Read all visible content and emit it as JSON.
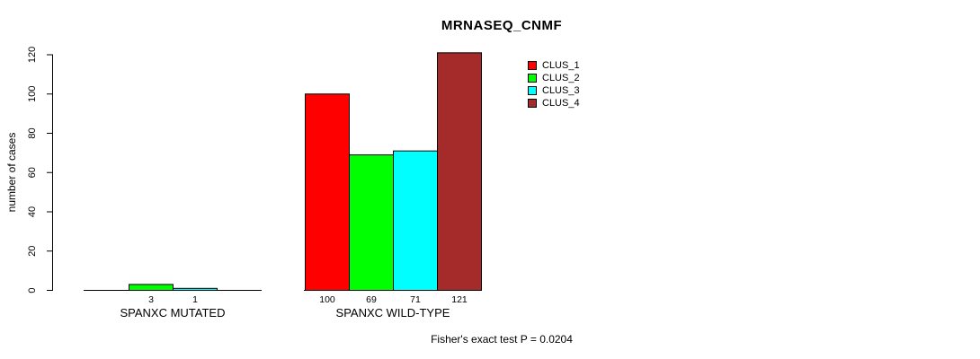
{
  "title": "MRNASEQ_CNMF",
  "footer": "Fisher's exact test P = 0.0204",
  "chart_data": {
    "type": "bar",
    "title": "MRNASEQ_CNMF",
    "xlabel": "",
    "ylabel": "number of cases",
    "ylim": [
      0,
      120
    ],
    "yticks": [
      0,
      20,
      40,
      60,
      80,
      100,
      120
    ],
    "categories": [
      "SPANXC MUTATED",
      "SPANXC WILD-TYPE"
    ],
    "series": [
      {
        "name": "CLUS_1",
        "color": "#FF0000",
        "values": [
          0,
          100
        ]
      },
      {
        "name": "CLUS_2",
        "color": "#00FF00",
        "values": [
          3,
          69
        ]
      },
      {
        "name": "CLUS_3",
        "color": "#00FFFF",
        "values": [
          1,
          71
        ]
      },
      {
        "name": "CLUS_4",
        "color": "#A52A2A",
        "values": [
          0,
          121
        ]
      }
    ],
    "bar_value_labels": {
      "SPANXC MUTATED": [
        null,
        3,
        1,
        null
      ],
      "SPANXC WILD-TYPE": [
        100,
        69,
        71,
        121
      ]
    },
    "annotation": "Fisher's exact test P = 0.0204",
    "legend_position": "top-right-inside",
    "legend_entries": [
      "CLUS_1",
      "CLUS_2",
      "CLUS_3",
      "CLUS_4"
    ],
    "grid": false,
    "bar_outline_color": "#000000",
    "background_color": "#FFFFFF"
  }
}
